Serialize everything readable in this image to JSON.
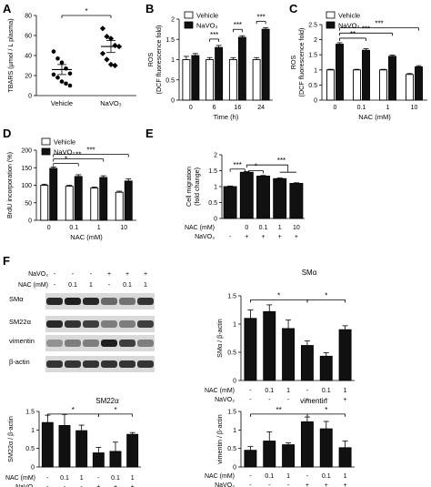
{
  "panels": {
    "A": {
      "letter": "A"
    },
    "B": {
      "letter": "B"
    },
    "C": {
      "letter": "C"
    },
    "D": {
      "letter": "D"
    },
    "E": {
      "letter": "E"
    },
    "F": {
      "letter": "F"
    }
  },
  "legend": {
    "vehicle": "Vehicle",
    "navo3": "NaVO₃"
  },
  "colors": {
    "vehicle": "#ffffff",
    "navo3": "#111111",
    "bar": "#111111"
  },
  "chart_data": [
    {
      "id": "A",
      "type": "scatter",
      "ylabel": "TBARS (μmol / L plasma)",
      "categories": [
        "Vehicle",
        "NaVO₃"
      ],
      "ylim": [
        0,
        80
      ],
      "yticks": [
        0,
        20,
        40,
        60,
        80
      ],
      "points": [
        [
          44,
          37,
          33,
          27,
          22,
          21,
          18,
          14,
          12,
          10
        ],
        [
          67,
          59,
          57,
          50,
          49,
          42,
          36,
          31,
          30
        ]
      ],
      "means": [
        26,
        49
      ],
      "sems": [
        5,
        6
      ],
      "significance": [
        {
          "between": [
            0,
            1
          ],
          "label": "*"
        }
      ]
    },
    {
      "id": "B",
      "type": "bar",
      "ylabel": "ROS\n(DCF fluorescence fold)",
      "xlabel": "Time (h)",
      "categories": [
        "0",
        "6",
        "16",
        "24"
      ],
      "ylim": [
        0,
        2
      ],
      "yticks": [
        0,
        0.5,
        1,
        1.5,
        2
      ],
      "series": [
        {
          "name": "Vehicle",
          "values": [
            1.0,
            1.0,
            1.0,
            1.0
          ],
          "errors": [
            0.08,
            0.05,
            0.05,
            0.05
          ]
        },
        {
          "name": "NaVO₃",
          "values": [
            1.1,
            1.3,
            1.55,
            1.75
          ],
          "errors": [
            0.05,
            0.05,
            0.04,
            0.04
          ]
        }
      ],
      "significance": [
        {
          "group": 1,
          "label": "***"
        },
        {
          "group": 2,
          "label": "***"
        },
        {
          "group": 3,
          "label": "***"
        }
      ]
    },
    {
      "id": "C",
      "type": "bar",
      "ylabel": "ROS\n(DCF fluorescence fold)",
      "xlabel": "NAC (mM)",
      "categories": [
        "0",
        "0.1",
        "1",
        "10"
      ],
      "ylim": [
        0,
        2.5
      ],
      "yticks": [
        0,
        0.5,
        1,
        1.5,
        2,
        2.5
      ],
      "series": [
        {
          "name": "Vehicle",
          "values": [
            1.0,
            1.0,
            1.0,
            0.85
          ],
          "errors": [
            0.02,
            0.02,
            0.02,
            0.03
          ]
        },
        {
          "name": "NaVO₃",
          "values": [
            1.85,
            1.65,
            1.45,
            1.1
          ],
          "errors": [
            0.05,
            0.05,
            0.04,
            0.04
          ]
        }
      ],
      "significance": [
        {
          "from": 0,
          "to": 1,
          "label": "**"
        },
        {
          "from": 0,
          "to": 2,
          "label": "***"
        },
        {
          "from": 0,
          "to": 3,
          "label": "***"
        }
      ]
    },
    {
      "id": "D",
      "type": "bar",
      "ylabel": "BrdU incorporation (%)",
      "xlabel": "NAC (mM)",
      "categories": [
        "0",
        "0.1",
        "1",
        "10"
      ],
      "ylim": [
        0,
        200
      ],
      "yticks": [
        0,
        50,
        100,
        150,
        200
      ],
      "series": [
        {
          "name": "Vehicle",
          "values": [
            100,
            97,
            92,
            80
          ],
          "errors": [
            3,
            3,
            3,
            3
          ]
        },
        {
          "name": "NaVO₃",
          "values": [
            148,
            125,
            122,
            112
          ],
          "errors": [
            4,
            5,
            5,
            6
          ]
        }
      ],
      "significance": [
        {
          "from": 0,
          "to": 1,
          "label": "*"
        },
        {
          "from": 0,
          "to": 2,
          "label": "**"
        },
        {
          "from": 0,
          "to": 3,
          "label": "***"
        }
      ]
    },
    {
      "id": "E",
      "type": "bar",
      "ylabel": "Cell migration\n(fold change)",
      "categories": [
        "1",
        "2",
        "3",
        "4",
        "5"
      ],
      "ylim": [
        0,
        2
      ],
      "yticks": [
        0,
        0.5,
        1,
        1.5,
        2
      ],
      "values": [
        1.0,
        1.45,
        1.33,
        1.25,
        1.1
      ],
      "errors": [
        0.02,
        0.02,
        0.02,
        0.02,
        0.02
      ],
      "rows": [
        {
          "label": "NAC (mM)",
          "values": [
            "",
            "0",
            "0.1",
            "1",
            "10"
          ]
        },
        {
          "label": "NaVO₃",
          "values": [
            "-",
            "+",
            "+",
            "+",
            "+"
          ]
        }
      ],
      "significance": [
        {
          "from": 0,
          "to": 1,
          "label": "***"
        },
        {
          "from": 1,
          "to": 2,
          "label": "*"
        },
        {
          "from": 1,
          "to": [
            3,
            4
          ],
          "label": "***"
        }
      ]
    },
    {
      "id": "F-SMa",
      "type": "bar",
      "title": "SMα",
      "ylabel": "SMα / β-actin",
      "categories": [
        "1",
        "2",
        "3",
        "4",
        "5",
        "6"
      ],
      "ylim": [
        0,
        1.5
      ],
      "yticks": [
        0,
        0.5,
        1,
        1.5
      ],
      "values": [
        1.1,
        1.22,
        0.92,
        0.62,
        0.43,
        0.9
      ],
      "errors": [
        0.15,
        0.12,
        0.15,
        0.08,
        0.06,
        0.07
      ],
      "rows": [
        {
          "label": "NAC (mM)",
          "values": [
            "-",
            "0.1",
            "1",
            "-",
            "0.1",
            "1"
          ]
        },
        {
          "label": "NaVO₃",
          "values": [
            "-",
            "-",
            "-",
            "+",
            "+",
            "+"
          ]
        }
      ],
      "significance": [
        {
          "from": 0,
          "to": 3,
          "label": "*"
        },
        {
          "from": 3,
          "to": 5,
          "label": "*"
        }
      ]
    },
    {
      "id": "F-SM22a",
      "type": "bar",
      "title": "SM22α",
      "ylabel": "SM22α / β-actin",
      "categories": [
        "1",
        "2",
        "3",
        "4",
        "5",
        "6"
      ],
      "ylim": [
        0,
        1.5
      ],
      "yticks": [
        0,
        0.5,
        1,
        1.5
      ],
      "values": [
        1.2,
        1.12,
        0.98,
        0.38,
        0.42,
        0.88
      ],
      "errors": [
        0.2,
        0.3,
        0.15,
        0.15,
        0.25,
        0.05
      ],
      "rows": [
        {
          "label": "NAC (mM)",
          "values": [
            "-",
            "0.1",
            "1",
            "-",
            "0.1",
            "1"
          ]
        },
        {
          "label": "NaVO₃",
          "values": [
            "-",
            "-",
            "-",
            "+",
            "+",
            "+"
          ]
        }
      ],
      "significance": [
        {
          "from": 0,
          "to": 3,
          "label": "*"
        },
        {
          "from": 3,
          "to": 5,
          "label": "*"
        }
      ]
    },
    {
      "id": "F-vimentin",
      "type": "bar",
      "title": "vimentin",
      "ylabel": "vimentin / β-actin",
      "categories": [
        "1",
        "2",
        "3",
        "4",
        "5",
        "6"
      ],
      "ylim": [
        0,
        1.5
      ],
      "yticks": [
        0,
        0.5,
        1,
        1.5
      ],
      "values": [
        0.45,
        0.7,
        0.6,
        1.22,
        1.03,
        0.52
      ],
      "errors": [
        0.1,
        0.25,
        0.05,
        0.13,
        0.2,
        0.18
      ],
      "rows": [
        {
          "label": "NAC (mM)",
          "values": [
            "-",
            "0.1",
            "1",
            "-",
            "0.1",
            "1"
          ]
        },
        {
          "label": "NaVO₃",
          "values": [
            "-",
            "-",
            "-",
            "+",
            "+",
            "+"
          ]
        }
      ],
      "significance": [
        {
          "from": 0,
          "to": 3,
          "label": "**"
        },
        {
          "from": 3,
          "to": 5,
          "label": "*"
        }
      ]
    }
  ],
  "blot": {
    "header_rows": [
      {
        "label": "NaVO₃",
        "values": [
          "-",
          "-",
          "-",
          "+",
          "+",
          "+"
        ]
      },
      {
        "label": "NAC (mM)",
        "values": [
          "-",
          "0.1",
          "1",
          "-",
          "0.1",
          "1"
        ]
      }
    ],
    "lanes": [
      {
        "label": "SMα",
        "intensity": [
          0.9,
          0.95,
          0.9,
          0.6,
          0.55,
          0.85
        ]
      },
      {
        "label": "SM22α",
        "intensity": [
          0.9,
          0.85,
          0.8,
          0.5,
          0.5,
          0.8
        ]
      },
      {
        "label": "vimentin",
        "intensity": [
          0.4,
          0.5,
          0.5,
          0.95,
          0.8,
          0.5
        ]
      },
      {
        "label": "β-actin",
        "intensity": [
          0.85,
          0.85,
          0.85,
          0.85,
          0.85,
          0.85
        ]
      }
    ]
  }
}
